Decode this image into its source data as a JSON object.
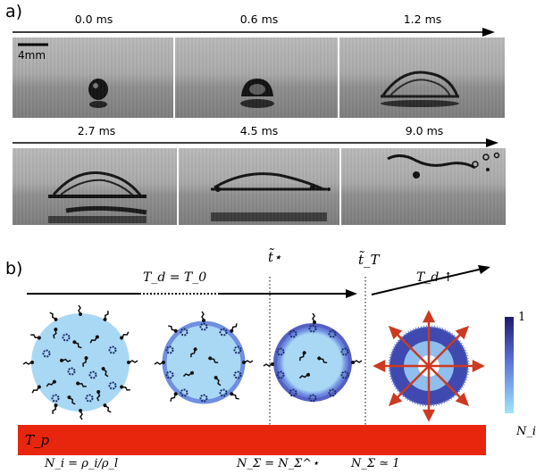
{
  "panel_a": {
    "label": "a)",
    "scale_bar_label": "4mm",
    "frames_row1": [
      "0.0 ms",
      "0.6 ms",
      "1.2 ms"
    ],
    "frames_row2": [
      "2.7 ms",
      "4.5 ms",
      "9.0 ms"
    ]
  },
  "panel_b": {
    "label": "b)",
    "td_equals_t0": "T_d = T_0",
    "td_up": "T_d ↑",
    "t_star": "t̃⋆",
    "t_T": "t̃_T",
    "plate_label": "T_p",
    "ni_label": "N_i = ρ_i/ρ_l",
    "nsigma_star": "N_Σ = N_Σ^⋆",
    "nsigma_one": "N_Σ ≃ 1",
    "colorbar_max": "1",
    "colorbar_label": "N_i",
    "colors": {
      "plate": "#e8250d",
      "droplet_light": "#a9d8f5",
      "droplet_mid": "#6f8fe0",
      "droplet_dark": "#3f49b0",
      "colorbar_top": "#1b1a6b",
      "colorbar_bottom": "#9fe6f8",
      "arrow_red": "#cc3a22"
    }
  }
}
